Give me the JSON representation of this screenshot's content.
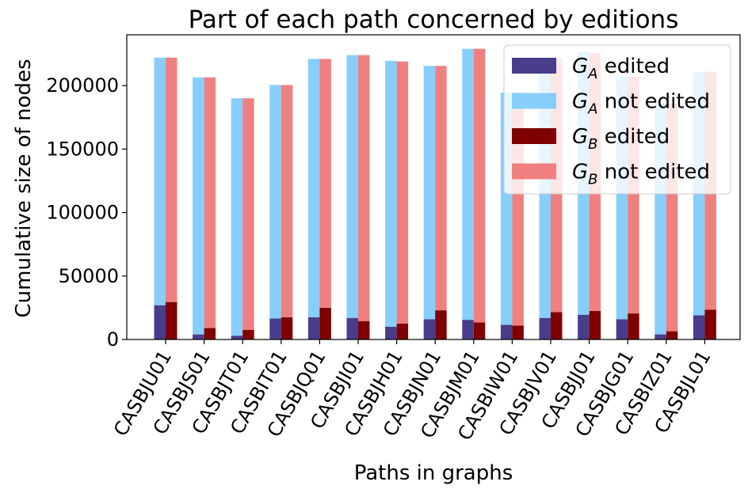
{
  "chart_data": {
    "type": "bar",
    "stacked": true,
    "grouped": true,
    "title": "Part of each path concerned by editions",
    "xlabel": "Paths in graphs",
    "ylabel": "Cumulative size of nodes",
    "ylim": [
      0,
      240000
    ],
    "yticks": [
      "0",
      "50000",
      "100000",
      "150000",
      "200000"
    ],
    "yticks_values": [
      0,
      50000,
      100000,
      150000,
      200000
    ],
    "categories": [
      "CASBJU01",
      "CASBJS01",
      "CASBJT01",
      "CASBIT01",
      "CASBJQ01",
      "CASBJI01",
      "CASBJH01",
      "CASBJN01",
      "CASBJM01",
      "CASBIW01",
      "CASBJV01",
      "CASBJJ01",
      "CASBJG01",
      "CASBIZ01",
      "CASBJL01"
    ],
    "legend_position": "top-right",
    "series": [
      {
        "name": "G_A edited",
        "legend_main": "G",
        "legend_sub": "A",
        "legend_rest": " edited",
        "group": "A",
        "color": "#483D8B",
        "values": [
          27000,
          4000,
          3000,
          16500,
          17500,
          17000,
          10000,
          16000,
          15500,
          11500,
          17000,
          19500,
          16000,
          4000,
          19000
        ]
      },
      {
        "name": "G_A not edited",
        "legend_main": "G",
        "legend_sub": "A",
        "legend_rest": " not edited",
        "group": "A",
        "color": "#87CEFA",
        "values": [
          195000,
          202500,
          187000,
          184000,
          203500,
          207000,
          209500,
          199500,
          213500,
          183000,
          204000,
          207000,
          191000,
          182000,
          191500
        ]
      },
      {
        "name": "G_B edited",
        "legend_main": "G",
        "legend_sub": "B",
        "legend_rest": " edited",
        "group": "B",
        "color": "#800000",
        "values": [
          29500,
          9000,
          7500,
          17500,
          25000,
          14500,
          12500,
          23000,
          13500,
          11000,
          21500,
          22500,
          20500,
          6500,
          23500
        ]
      },
      {
        "name": "G_B not edited",
        "legend_main": "G",
        "legend_sub": "B",
        "legend_rest": " not edited",
        "group": "B",
        "color": "#F08080",
        "values": [
          192500,
          197500,
          182500,
          183000,
          196000,
          209500,
          206500,
          192500,
          215500,
          183500,
          199500,
          203000,
          186500,
          179500,
          187500
        ]
      }
    ]
  }
}
